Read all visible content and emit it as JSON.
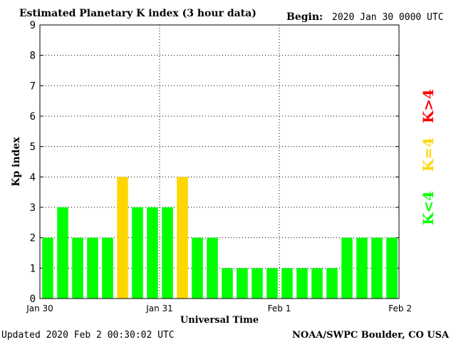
{
  "title": "Estimated Planetary K index (3 hour data)",
  "begin_label": "Begin:",
  "begin_value": "2020 Jan 30 0000 UTC",
  "footer_left": "Updated 2020 Feb  2 00:30:02 UTC",
  "footer_right": "NOAA/SWPC Boulder, CO USA",
  "side_legend": {
    "low": "K<4",
    "eq": "K=4",
    "high": "K>4"
  },
  "colors": {
    "low": "#00ff00",
    "eq": "#ffd700",
    "high": "#ff0000"
  },
  "chart_data": {
    "type": "bar",
    "xlabel": "Universal Time",
    "ylabel": "Kp index",
    "ylim": [
      0,
      9
    ],
    "yticks": [
      "0",
      "1",
      "2",
      "3",
      "4",
      "5",
      "6",
      "7",
      "8",
      "9"
    ],
    "x_ticks": [
      "Jan 30",
      "Jan 31",
      "Feb 1",
      "Feb 2"
    ],
    "grid": "dotted, at integer Kp and day boundaries",
    "values": [
      2,
      3,
      2,
      2,
      2,
      4,
      3,
      3,
      3,
      4,
      2,
      2,
      1,
      1,
      1,
      1,
      1,
      1,
      1,
      1,
      2,
      2,
      2,
      2
    ]
  }
}
